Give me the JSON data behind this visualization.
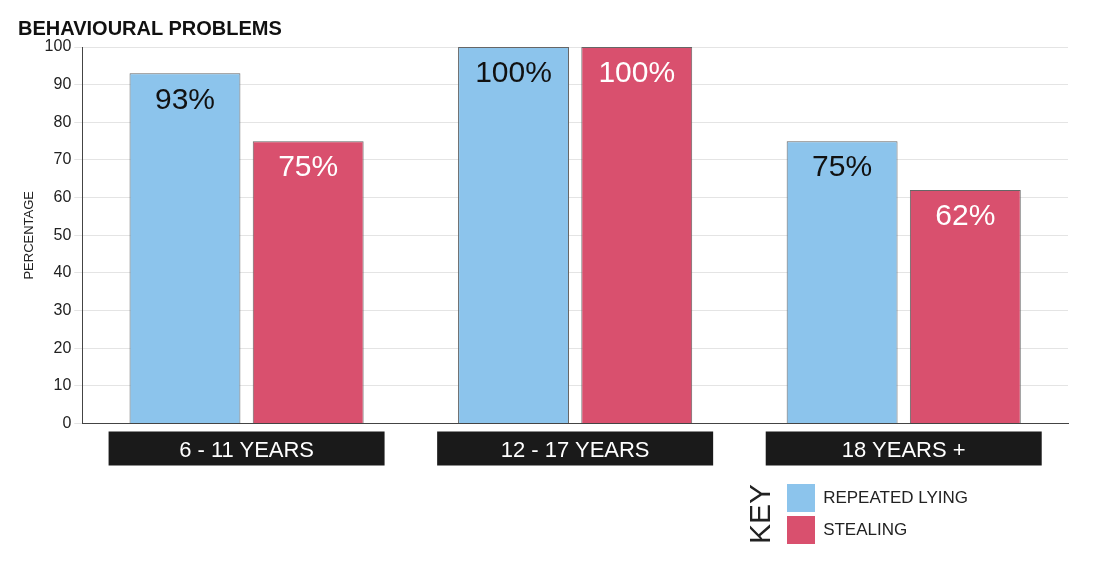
{
  "chart_data": {
    "type": "bar",
    "title": "BEHAVIOURAL PROBLEMS",
    "ylabel": "PERCENTAGE",
    "legend_title": "KEY",
    "categories": [
      "6 - 11 YEARS",
      "12 - 17 YEARS",
      "18 YEARS +"
    ],
    "series": [
      {
        "name": "REPEATED LYING",
        "color": "#8cc4ec",
        "values": [
          93,
          100,
          75
        ],
        "value_labels": [
          "93%",
          "100%",
          "75%"
        ]
      },
      {
        "name": "STEALING",
        "color": "#d9506e",
        "values": [
          75,
          100,
          62
        ],
        "value_labels": [
          "75%",
          "100%",
          "62%"
        ]
      }
    ],
    "ylim": [
      0,
      100
    ],
    "yticks": [
      0,
      10,
      20,
      30,
      40,
      50,
      60,
      70,
      80,
      90,
      100
    ],
    "grid": "y",
    "legend": "bottom right"
  }
}
